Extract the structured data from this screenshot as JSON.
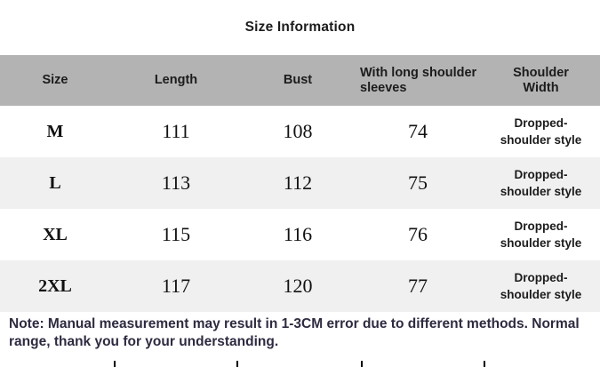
{
  "title": "Size Information",
  "table": {
    "headers": [
      "Size",
      "Length",
      "Bust",
      "With long shoulder sleeves",
      "Shoulder Width"
    ],
    "rows": [
      {
        "size": "M",
        "length": "111",
        "bust": "108",
        "sleeve": "74",
        "shoulder": "Dropped-shoulder style"
      },
      {
        "size": "L",
        "length": "113",
        "bust": "112",
        "sleeve": "75",
        "shoulder": "Dropped-shoulder style"
      },
      {
        "size": "XL",
        "length": "115",
        "bust": "116",
        "sleeve": "76",
        "shoulder": "Dropped-shoulder style"
      },
      {
        "size": "2XL",
        "length": "117",
        "bust": "120",
        "sleeve": "77",
        "shoulder": "Dropped-shoulder style"
      }
    ]
  },
  "note": "Note: Manual measurement may result in 1-3CM error due to different methods. Normal range, thank you for your understanding.",
  "colors": {
    "header_bg": "#b3b3b3",
    "alt_row_bg": "#f0f0f1",
    "header_text": "#1d1b1b",
    "body_text": "#111111",
    "note_text": "#2e2b40",
    "page_bg": "#ffffff"
  },
  "chart_data": {
    "type": "table",
    "title": "Size Information",
    "columns": [
      "Size",
      "Length",
      "Bust",
      "With long shoulder sleeves",
      "Shoulder Width"
    ],
    "rows": [
      [
        "M",
        111,
        108,
        74,
        "Dropped-shoulder style"
      ],
      [
        "L",
        113,
        112,
        75,
        "Dropped-shoulder style"
      ],
      [
        "XL",
        115,
        116,
        76,
        "Dropped-shoulder style"
      ],
      [
        "2XL",
        117,
        120,
        77,
        "Dropped-shoulder style"
      ]
    ],
    "note": "Note: Manual measurement may result in 1-3CM error due to different methods. Normal range, thank you for your understanding.",
    "layout_hints": {
      "header_shaded": true,
      "alternating_rows": true,
      "gridlines": false
    }
  }
}
